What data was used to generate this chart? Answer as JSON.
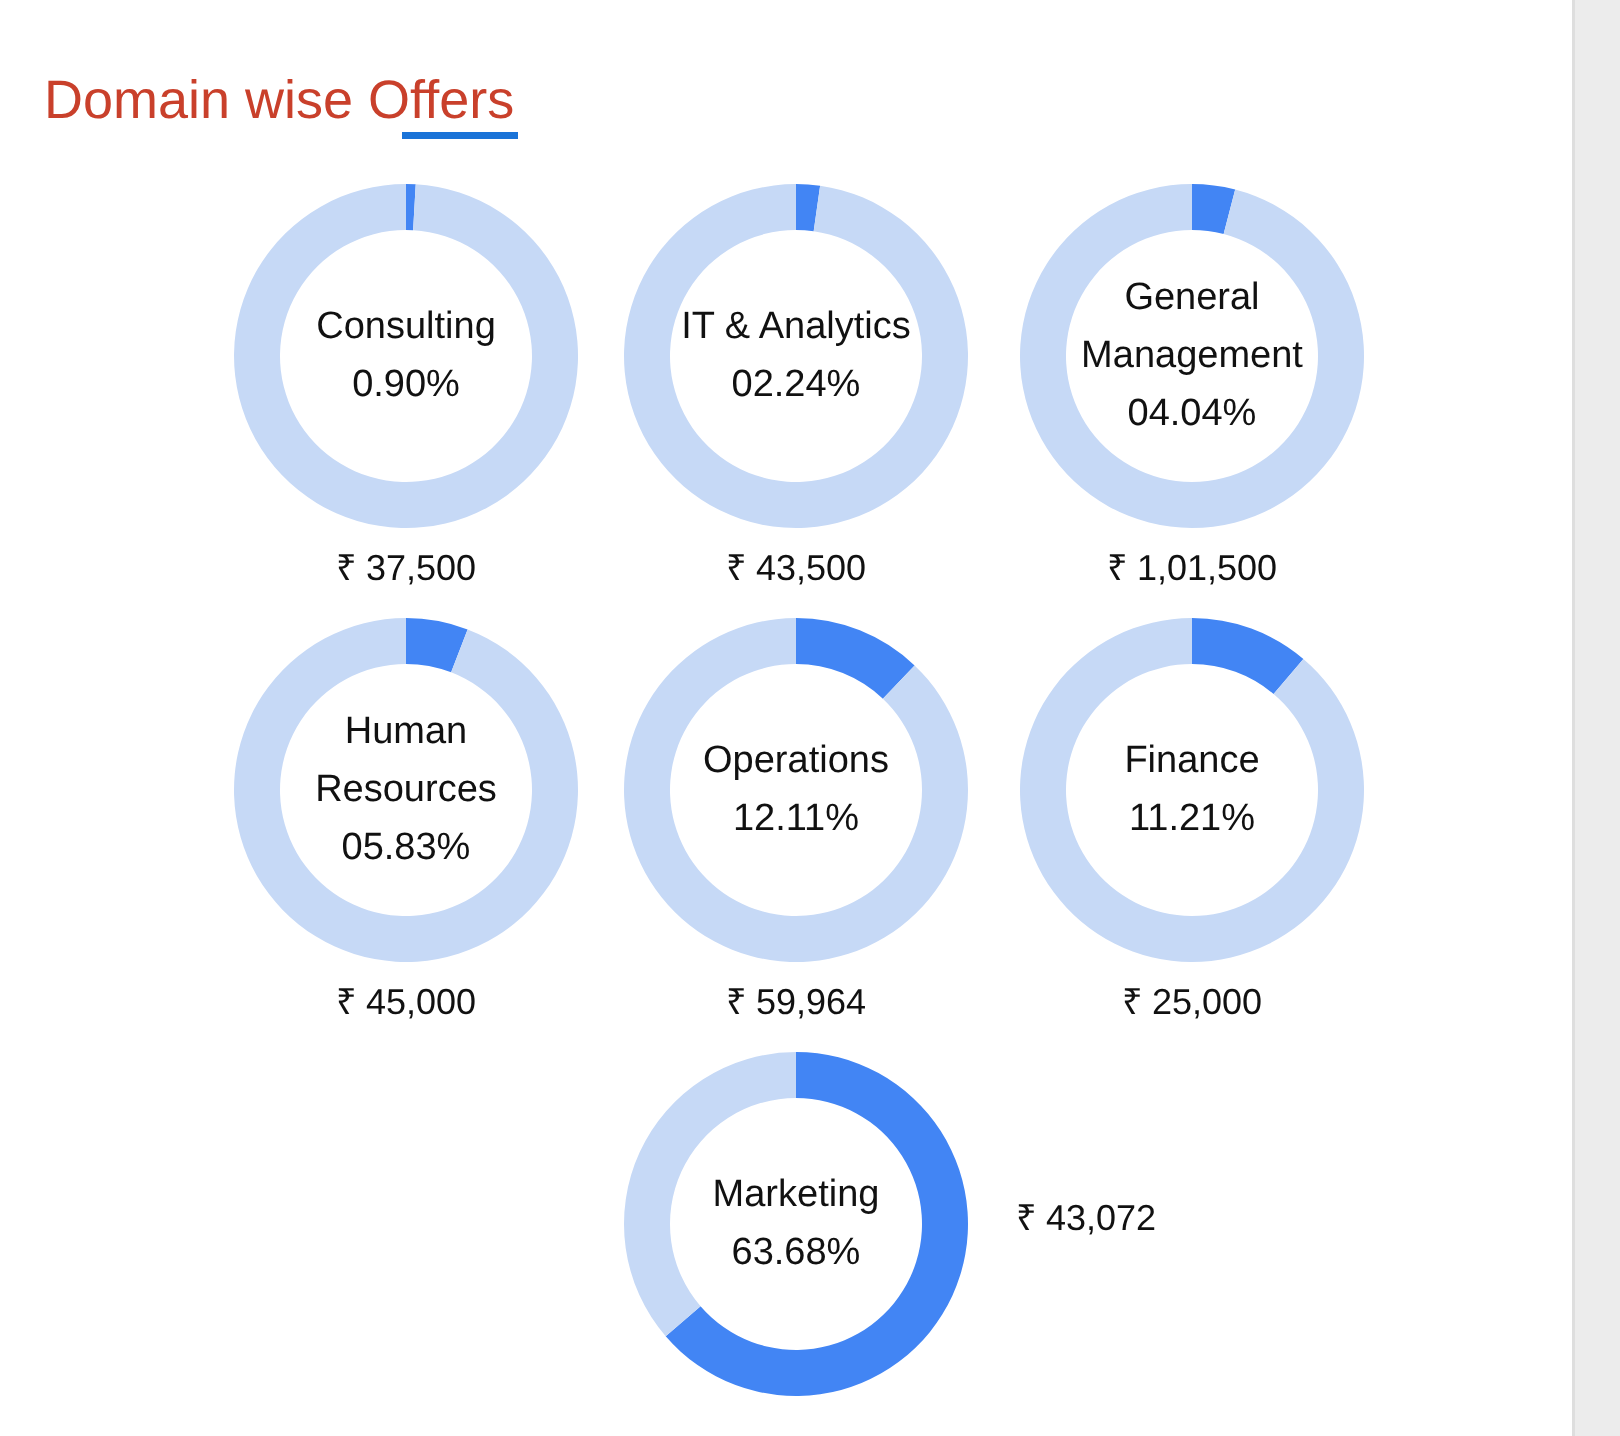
{
  "chart_data": [
    {
      "type": "donut",
      "title": "Domain wise Offers",
      "categories": [
        "Consulting",
        null
      ],
      "values": [
        0.9,
        99.1
      ],
      "colors": [
        "#4285f4",
        "#c6d9f6"
      ],
      "value_labels": [
        "0.90%",
        null
      ],
      "annotations": [
        "₹ 37,500"
      ]
    },
    {
      "type": "donut",
      "categories": [
        "IT & Analytics",
        null
      ],
      "values": [
        2.24,
        97.76
      ],
      "colors": [
        "#4285f4",
        "#c6d9f6"
      ],
      "value_labels": [
        "02.24%",
        null
      ],
      "annotations": [
        "₹ 43,500"
      ]
    },
    {
      "type": "donut",
      "categories": [
        "General Management",
        null
      ],
      "values": [
        4.04,
        95.96
      ],
      "colors": [
        "#4285f4",
        "#c6d9f6"
      ],
      "value_labels": [
        "04.04%",
        null
      ],
      "annotations": [
        "₹ 1,01,500"
      ]
    },
    {
      "type": "donut",
      "categories": [
        "Human Resources",
        null
      ],
      "values": [
        5.83,
        94.17
      ],
      "colors": [
        "#4285f4",
        "#c6d9f6"
      ],
      "value_labels": [
        "05.83%",
        null
      ],
      "annotations": [
        "₹ 45,000"
      ]
    },
    {
      "type": "donut",
      "categories": [
        "Operations",
        null
      ],
      "values": [
        12.11,
        87.89
      ],
      "colors": [
        "#4285f4",
        "#c6d9f6"
      ],
      "value_labels": [
        "12.11%",
        null
      ],
      "annotations": [
        "₹ 59,964"
      ]
    },
    {
      "type": "donut",
      "categories": [
        "Finance",
        null
      ],
      "values": [
        11.21,
        88.79
      ],
      "colors": [
        "#4285f4",
        "#c6d9f6"
      ],
      "value_labels": [
        "11.21%",
        null
      ],
      "annotations": [
        "₹ 25,000"
      ]
    },
    {
      "type": "donut",
      "categories": [
        "Marketing",
        null
      ],
      "values": [
        63.68,
        36.32
      ],
      "colors": [
        "#4285f4",
        "#c6d9f6"
      ],
      "value_labels": [
        "63.68%",
        null
      ],
      "annotations": [
        "₹ 43,072"
      ]
    }
  ]
}
